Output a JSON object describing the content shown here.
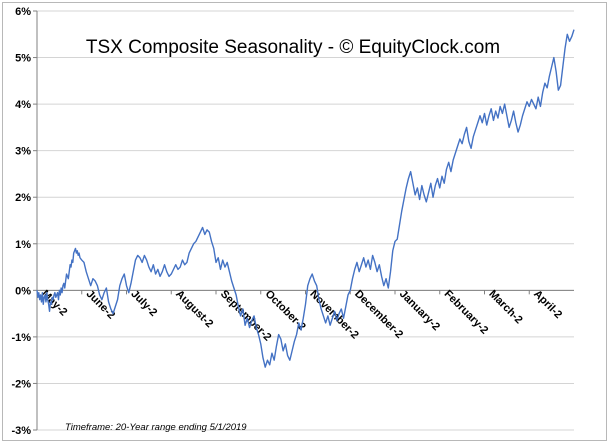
{
  "chart_data": {
    "type": "line",
    "title": "TSX Composite Seasonality - © EquityClock.com",
    "footnote": "Timeframe: 20-Year range ending 5/1/2019",
    "xlabel": "",
    "ylabel": "",
    "ylim": [
      -3,
      6
    ],
    "yticks": [
      "6%",
      "5%",
      "4%",
      "3%",
      "2%",
      "1%",
      "0%",
      "-1%",
      "-2%",
      "-3%"
    ],
    "ytick_values": [
      6,
      5,
      4,
      3,
      2,
      1,
      0,
      -1,
      -2,
      -3
    ],
    "months": [
      "May-2",
      "June-2",
      "July-2",
      "August-2",
      "September-2",
      "October-2",
      "November-2",
      "December-2",
      "January-2",
      "February-2",
      "March-2",
      "April-2"
    ],
    "grid": "horizontal",
    "legend": "none",
    "line_color": "#4472c4",
    "series": [
      {
        "x": [
          0.0,
          0.02,
          0.04,
          0.06,
          0.08,
          0.1,
          0.12,
          0.14,
          0.16,
          0.18,
          0.2,
          0.22,
          0.24,
          0.26,
          0.28,
          0.3,
          0.32,
          0.34,
          0.36,
          0.38,
          0.4,
          0.42,
          0.44,
          0.46,
          0.48,
          0.5,
          0.52,
          0.54,
          0.56,
          0.58,
          0.6,
          0.62,
          0.64,
          0.66,
          0.68,
          0.7,
          0.72,
          0.74,
          0.76,
          0.78,
          0.8,
          0.82,
          0.84,
          0.86,
          0.88,
          0.9,
          0.92,
          0.94,
          0.96,
          1.0,
          1.05,
          1.1,
          1.15,
          1.2,
          1.25,
          1.3,
          1.35,
          1.4,
          1.45,
          1.5,
          1.55,
          1.6,
          1.65,
          1.7,
          1.75,
          1.8,
          1.85,
          1.9,
          1.95,
          2.0,
          2.05,
          2.1,
          2.15,
          2.2,
          2.25,
          2.3,
          2.35,
          2.4,
          2.45,
          2.5,
          2.55,
          2.6,
          2.65,
          2.7,
          2.75,
          2.8,
          2.85,
          2.9,
          2.95,
          3.0,
          3.05,
          3.1,
          3.15,
          3.2,
          3.25,
          3.3,
          3.35,
          3.4,
          3.45,
          3.5,
          3.55,
          3.6,
          3.65,
          3.7,
          3.75,
          3.8,
          3.85,
          3.9,
          3.95,
          4.0,
          4.05,
          4.1,
          4.15,
          4.2,
          4.25,
          4.3,
          4.35,
          4.4,
          4.45,
          4.5,
          4.55,
          4.6,
          4.65,
          4.7,
          4.75,
          4.8,
          4.85,
          4.9,
          4.95,
          5.0,
          5.05,
          5.1,
          5.15,
          5.2,
          5.25,
          5.3,
          5.35,
          5.4,
          5.45,
          5.5,
          5.55,
          5.6,
          5.65,
          5.7,
          5.75,
          5.8,
          5.85,
          5.9,
          5.95,
          6.0,
          6.05,
          6.1,
          6.15,
          6.2,
          6.25,
          6.3,
          6.35,
          6.4,
          6.45,
          6.5,
          6.55,
          6.6,
          6.65,
          6.7,
          6.75,
          6.8,
          6.85,
          6.9,
          6.95,
          7.0,
          7.05,
          7.1,
          7.15,
          7.2,
          7.25,
          7.3,
          7.35,
          7.4,
          7.45,
          7.5,
          7.55,
          7.6,
          7.65,
          7.7,
          7.75,
          7.8,
          7.85,
          7.9,
          7.95,
          8.0,
          8.05,
          8.1,
          8.15,
          8.2,
          8.25,
          8.3,
          8.35,
          8.4,
          8.45,
          8.5,
          8.55,
          8.6,
          8.65,
          8.7,
          8.75,
          8.8,
          8.85,
          8.9,
          8.95,
          9.0,
          9.05,
          9.1,
          9.15,
          9.2,
          9.25,
          9.3,
          9.35,
          9.4,
          9.45,
          9.5,
          9.55,
          9.6,
          9.65,
          9.7,
          9.75,
          9.8,
          9.85,
          9.9,
          9.95,
          10.0,
          10.05,
          10.1,
          10.15,
          10.2,
          10.25,
          10.3,
          10.35,
          10.4,
          10.45,
          10.5,
          10.55,
          10.6,
          10.65,
          10.7,
          10.75,
          10.8,
          10.85,
          10.9,
          10.95,
          11.0,
          11.05,
          11.1,
          11.15,
          11.2,
          11.25,
          11.3,
          11.35,
          11.4,
          11.45,
          11.5,
          11.55,
          11.6,
          11.65,
          11.7,
          11.75,
          11.8,
          11.85,
          11.9,
          11.95,
          12.0
        ],
        "values": [
          0.0,
          -0.15,
          -0.05,
          -0.2,
          -0.1,
          -0.25,
          -0.05,
          -0.3,
          -0.15,
          -0.1,
          -0.25,
          -0.05,
          -0.2,
          -0.3,
          -0.45,
          -0.25,
          -0.3,
          -0.15,
          -0.2,
          -0.1,
          -0.05,
          -0.15,
          -0.1,
          -0.05,
          -0.2,
          0.0,
          -0.1,
          0.05,
          -0.05,
          0.1,
          0.15,
          0.05,
          0.2,
          0.35,
          0.3,
          0.25,
          0.4,
          0.55,
          0.5,
          0.65,
          0.6,
          0.8,
          0.85,
          0.9,
          0.8,
          0.85,
          0.75,
          0.8,
          0.7,
          0.65,
          0.6,
          0.4,
          0.25,
          0.1,
          0.25,
          0.2,
          0.1,
          -0.1,
          -0.2,
          -0.05,
          0.05,
          -0.25,
          -0.4,
          -0.5,
          -0.35,
          -0.2,
          0.1,
          0.25,
          0.35,
          0.1,
          -0.05,
          0.15,
          0.4,
          0.65,
          0.75,
          0.7,
          0.6,
          0.75,
          0.65,
          0.5,
          0.4,
          0.55,
          0.35,
          0.45,
          0.3,
          0.4,
          0.55,
          0.4,
          0.3,
          0.35,
          0.45,
          0.55,
          0.45,
          0.5,
          0.65,
          0.55,
          0.6,
          0.8,
          0.9,
          1.0,
          1.05,
          1.15,
          1.25,
          1.35,
          1.2,
          1.3,
          1.25,
          1.05,
          0.9,
          0.6,
          0.7,
          0.45,
          0.65,
          0.5,
          0.6,
          0.4,
          0.2,
          0.05,
          -0.1,
          -0.35,
          -0.55,
          -0.4,
          -0.75,
          -0.6,
          -0.8,
          -0.65,
          -0.55,
          -0.8,
          -0.95,
          -1.15,
          -1.45,
          -1.65,
          -1.5,
          -1.6,
          -1.35,
          -1.5,
          -1.2,
          -0.95,
          -1.05,
          -1.3,
          -1.15,
          -1.4,
          -1.5,
          -1.3,
          -1.1,
          -0.95,
          -0.7,
          -0.85,
          -0.6,
          -0.3,
          0.1,
          0.25,
          0.35,
          0.2,
          0.1,
          -0.2,
          -0.4,
          -0.55,
          -0.7,
          -0.55,
          -0.75,
          -0.6,
          -0.45,
          -0.65,
          -0.5,
          -0.4,
          -0.6,
          -0.35,
          -0.1,
          0.0,
          0.25,
          0.45,
          0.6,
          0.4,
          0.55,
          0.7,
          0.5,
          0.65,
          0.45,
          0.75,
          0.6,
          0.4,
          0.55,
          0.3,
          0.1,
          0.25,
          0.05,
          0.4,
          0.85,
          1.05,
          1.1,
          1.4,
          1.7,
          1.95,
          2.2,
          2.4,
          2.55,
          2.3,
          2.05,
          2.2,
          1.95,
          2.25,
          2.05,
          1.9,
          2.1,
          2.3,
          2.0,
          2.25,
          2.4,
          2.2,
          2.45,
          2.3,
          2.6,
          2.75,
          2.55,
          2.8,
          2.95,
          3.1,
          3.25,
          3.15,
          3.35,
          3.5,
          3.2,
          3.05,
          3.3,
          3.45,
          3.6,
          3.75,
          3.6,
          3.8,
          3.55,
          3.75,
          3.9,
          3.65,
          3.85,
          3.7,
          3.95,
          3.8,
          4.0,
          3.75,
          3.5,
          3.65,
          3.85,
          3.6,
          3.4,
          3.55,
          3.75,
          3.9,
          4.05,
          3.95,
          4.1,
          4.0,
          3.9,
          4.15,
          3.95,
          4.25,
          4.45,
          4.35,
          4.6,
          4.8,
          5.0,
          4.7,
          4.3,
          4.4,
          4.8,
          5.2,
          5.5,
          5.35,
          5.45,
          5.6
        ]
      }
    ]
  }
}
